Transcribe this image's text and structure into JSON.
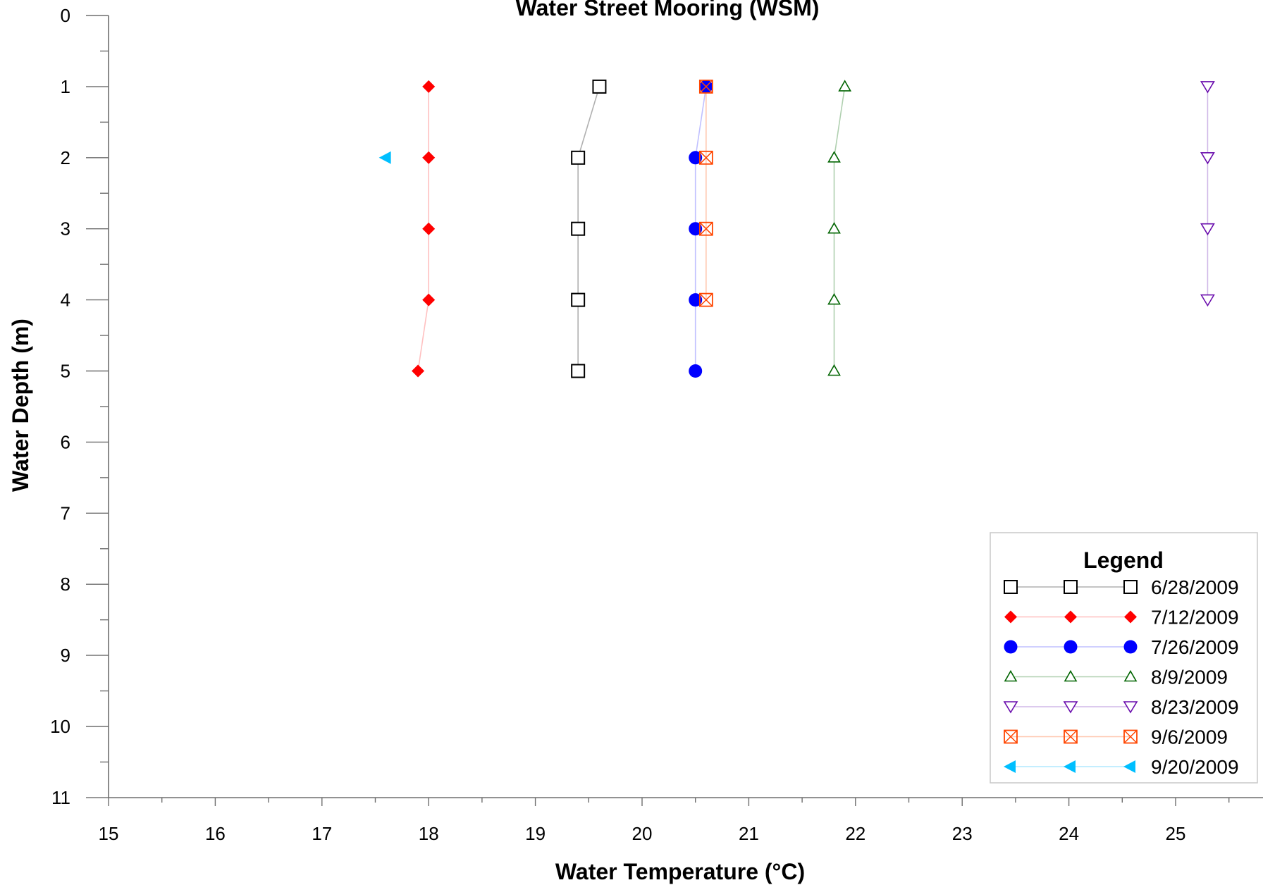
{
  "chart_data": {
    "type": "line",
    "title": "Water Street Mooring (WSM)",
    "xlabel": "Water Temperature (°C)",
    "ylabel": "Water Depth (m)",
    "xlim": [
      15,
      25.5
    ],
    "ylim": [
      0,
      11
    ],
    "y_inverted": true,
    "x_ticks": [
      "15",
      "16",
      "17",
      "18",
      "19",
      "20",
      "21",
      "22",
      "23",
      "24",
      "25"
    ],
    "y_ticks": [
      "0",
      "1",
      "2",
      "3",
      "4",
      "5",
      "6",
      "7",
      "8",
      "9",
      "10",
      "11"
    ],
    "grid": false,
    "legend_title": "Legend",
    "legend_position": "bottom-right",
    "series": [
      {
        "name": "6/28/2009",
        "marker": "square-open",
        "color": "#000000",
        "line_color": "#b0b0b0",
        "points": [
          [
            19.6,
            1
          ],
          [
            19.4,
            2
          ],
          [
            19.4,
            3
          ],
          [
            19.4,
            4
          ],
          [
            19.4,
            5
          ]
        ]
      },
      {
        "name": "7/12/2009",
        "marker": "diamond-filled",
        "color": "#ff0000",
        "line_color": "#ffc0c0",
        "points": [
          [
            18.0,
            1
          ],
          [
            18.0,
            2
          ],
          [
            18.0,
            3
          ],
          [
            18.0,
            4
          ],
          [
            17.9,
            5
          ]
        ]
      },
      {
        "name": "7/26/2009",
        "marker": "circle-filled",
        "color": "#0000ff",
        "line_color": "#c0c0ff",
        "points": [
          [
            20.6,
            1
          ],
          [
            20.5,
            2
          ],
          [
            20.5,
            3
          ],
          [
            20.5,
            4
          ],
          [
            20.5,
            5
          ]
        ]
      },
      {
        "name": "8/9/2009",
        "marker": "triangle-up-open",
        "color": "#006400",
        "line_color": "#b0d0b0",
        "points": [
          [
            21.9,
            1
          ],
          [
            21.8,
            2
          ],
          [
            21.8,
            3
          ],
          [
            21.8,
            4
          ],
          [
            21.8,
            5
          ]
        ]
      },
      {
        "name": "8/23/2009",
        "marker": "triangle-down-open",
        "color": "#6a0dad",
        "line_color": "#d0b8e8",
        "points": [
          [
            25.3,
            1
          ],
          [
            25.3,
            2
          ],
          [
            25.3,
            3
          ],
          [
            25.3,
            4
          ]
        ]
      },
      {
        "name": "9/6/2009",
        "marker": "square-x-open",
        "color": "#ff4500",
        "line_color": "#ffc8b0",
        "points": [
          [
            20.6,
            1
          ],
          [
            20.6,
            2
          ],
          [
            20.6,
            3
          ],
          [
            20.6,
            4
          ]
        ]
      },
      {
        "name": "9/20/2009",
        "marker": "triangle-left-filled",
        "color": "#00bfff",
        "line_color": "#b0e8ff",
        "points": [
          [
            17.6,
            2
          ]
        ]
      }
    ]
  }
}
